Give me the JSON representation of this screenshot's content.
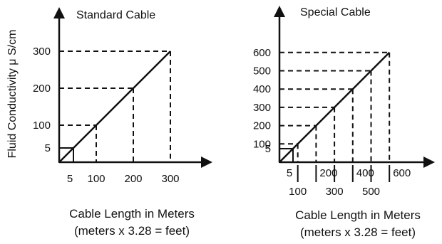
{
  "y_axis_label": "Fluid Conductivity μ S/cm",
  "colors": {
    "ink": "#111111",
    "background": "#ffffff"
  },
  "chart_data": [
    {
      "type": "line",
      "title": "Standard Cable",
      "xlabel": "Cable Length in Meters",
      "xlabel_note": "(meters x 3.28 = feet)",
      "ylabel": "Fluid Conductivity μ S/cm",
      "x_ticks": [
        {
          "label": "5",
          "value": 5
        },
        {
          "label": "100",
          "value": 100
        },
        {
          "label": "200",
          "value": 200
        },
        {
          "label": "300",
          "value": 300
        }
      ],
      "y_ticks": [
        {
          "label": "5",
          "value": 5
        },
        {
          "label": "100",
          "value": 100
        },
        {
          "label": "200",
          "value": 200
        },
        {
          "label": "300",
          "value": 300
        }
      ],
      "series": [
        {
          "x": [
            5,
            100,
            200,
            300
          ],
          "y": [
            5,
            100,
            200,
            300
          ]
        }
      ],
      "dashed_guides": [
        100,
        200,
        300
      ],
      "small_square_at": 5,
      "grid": false
    },
    {
      "type": "line",
      "title": "Special Cable",
      "xlabel": "Cable Length in Meters",
      "xlabel_note": "(meters x 3.28 = feet)",
      "ylabel": "",
      "x_ticks": [
        {
          "label": "5",
          "value": 5,
          "row": "upper"
        },
        {
          "label": "100",
          "value": 100,
          "row": "lower"
        },
        {
          "label": "200",
          "value": 200,
          "row": "upper"
        },
        {
          "label": "300",
          "value": 300,
          "row": "lower"
        },
        {
          "label": "400",
          "value": 400,
          "row": "upper"
        },
        {
          "label": "500",
          "value": 500,
          "row": "lower"
        },
        {
          "label": "600",
          "value": 600,
          "row": "upper"
        }
      ],
      "y_ticks": [
        {
          "label": "5",
          "value": 5
        },
        {
          "label": "100",
          "value": 100
        },
        {
          "label": "200",
          "value": 200
        },
        {
          "label": "300",
          "value": 300
        },
        {
          "label": "400",
          "value": 400
        },
        {
          "label": "500",
          "value": 500
        },
        {
          "label": "600",
          "value": 600
        }
      ],
      "series": [
        {
          "x": [
            5,
            100,
            200,
            300,
            400,
            500,
            600
          ],
          "y": [
            5,
            100,
            200,
            300,
            400,
            500,
            600
          ]
        }
      ],
      "dashed_guides": [
        100,
        200,
        300,
        400,
        500,
        600
      ],
      "small_square_at": 5,
      "grid": false
    }
  ]
}
